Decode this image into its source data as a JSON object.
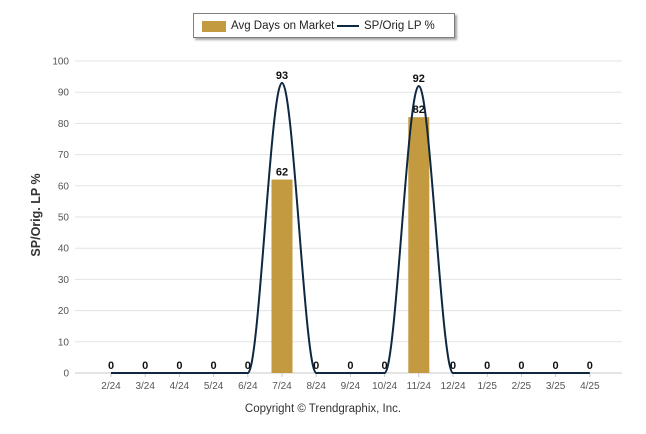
{
  "chart_data": {
    "type": "bar",
    "categories": [
      "2/24",
      "3/24",
      "4/24",
      "5/24",
      "6/24",
      "7/24",
      "8/24",
      "9/24",
      "10/24",
      "11/24",
      "12/24",
      "1/25",
      "2/25",
      "3/25",
      "4/25"
    ],
    "series": [
      {
        "name": "Avg Days on Market",
        "type": "bar",
        "color": "#C39A3F",
        "values": [
          0,
          0,
          0,
          0,
          0,
          62,
          0,
          0,
          0,
          82,
          0,
          0,
          0,
          0,
          0
        ]
      },
      {
        "name": "SP/Orig LP %",
        "type": "line",
        "color": "#0E2841",
        "values": [
          0,
          0,
          0,
          0,
          0,
          93,
          0,
          0,
          0,
          92,
          0,
          0,
          0,
          0,
          0
        ]
      }
    ],
    "title": "",
    "xlabel": "",
    "ylabel": "SP/Orig. LP %",
    "ylim": [
      0,
      100
    ],
    "yticks": [
      0,
      10,
      20,
      30,
      40,
      50,
      60,
      70,
      80,
      90,
      100
    ],
    "grid": true,
    "legend_position": "top"
  },
  "legend": {
    "bar_label": "Avg Days on Market",
    "line_label": "SP/Orig LP %"
  },
  "footer": {
    "copyright": "Copyright © Trendgraphix, Inc."
  }
}
